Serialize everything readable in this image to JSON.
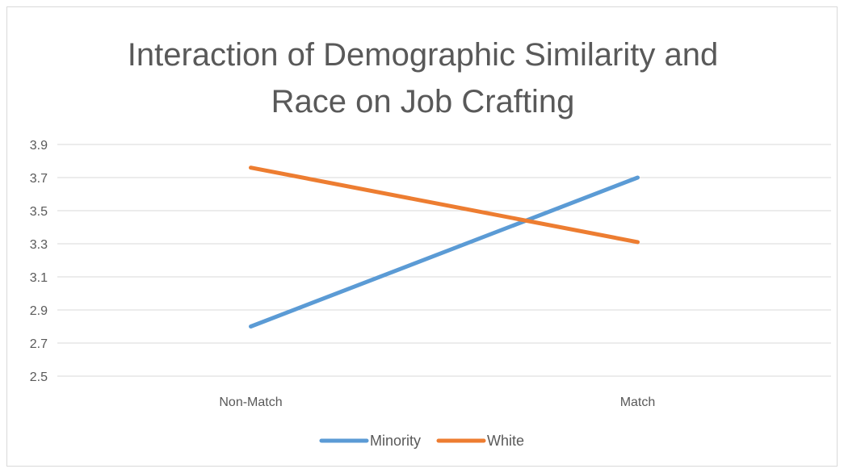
{
  "chart_data": {
    "type": "line",
    "title_lines": [
      "Interaction of Demographic Similarity and",
      "Race on Job Crafting"
    ],
    "categories": [
      "Non-Match",
      "Match"
    ],
    "series": [
      {
        "name": "Minority",
        "values": [
          2.8,
          3.7
        ],
        "color": "#5b9bd5"
      },
      {
        "name": "White",
        "values": [
          3.76,
          3.31
        ],
        "color": "#ed7d31"
      }
    ],
    "y_ticks": [
      "2.5",
      "2.7",
      "2.9",
      "3.1",
      "3.3",
      "3.5",
      "3.7",
      "3.9"
    ],
    "ylim": [
      2.5,
      3.9
    ],
    "grid": true,
    "legend_position": "bottom",
    "xlabel": "",
    "ylabel": ""
  }
}
